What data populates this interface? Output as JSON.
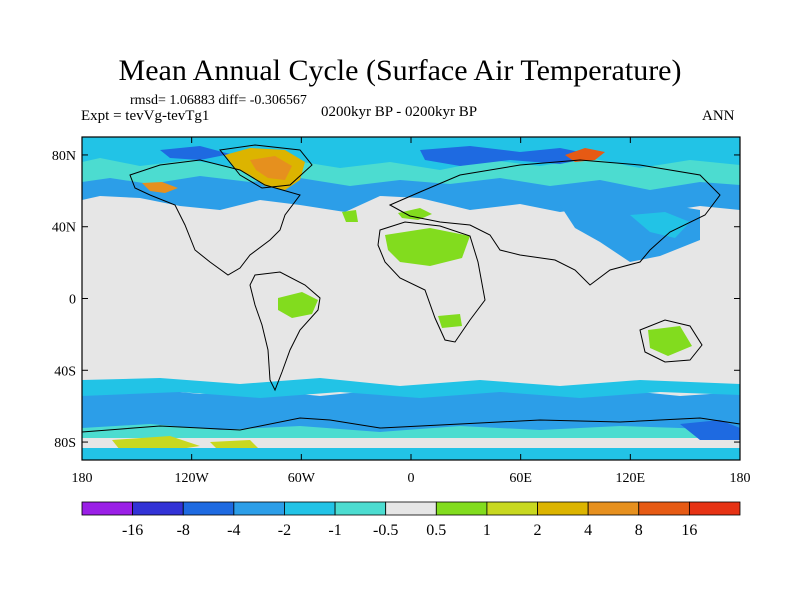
{
  "title": "Mean Annual Cycle (Surface Air Temperature)",
  "stats": "rmsd= 1.06883 diff= -0.306567",
  "experiment": "Expt = tevVg-tevTg1",
  "period": "0200kyr BP - 0200kyr BP",
  "season": "ANN",
  "chart_data": {
    "type": "heatmap",
    "title": "Mean Annual Cycle (Surface Air Temperature)",
    "projection": "cylindrical-equidistant",
    "lon_range": [
      -180,
      180
    ],
    "lat_range": [
      -90,
      90
    ],
    "x_ticks": [
      {
        "value": -180,
        "label": "180"
      },
      {
        "value": -120,
        "label": "120W"
      },
      {
        "value": -60,
        "label": "60W"
      },
      {
        "value": 0,
        "label": "0"
      },
      {
        "value": 60,
        "label": "60E"
      },
      {
        "value": 120,
        "label": "120E"
      },
      {
        "value": 180,
        "label": "180"
      }
    ],
    "y_ticks": [
      {
        "value": 80,
        "label": "80N"
      },
      {
        "value": 40,
        "label": "40N"
      },
      {
        "value": 0,
        "label": "0"
      },
      {
        "value": -40,
        "label": "40S"
      },
      {
        "value": -80,
        "label": "80S"
      }
    ],
    "colorbar": {
      "boundaries": [
        "-16",
        "-8",
        "-4",
        "-2",
        "-1",
        "-0.5",
        "0.5",
        "1",
        "2",
        "4",
        "8",
        "16"
      ],
      "colors": [
        "#9a1fe6",
        "#3232d6",
        "#1e6ae1",
        "#2c9ee8",
        "#22c3e6",
        "#4cdcd0",
        "#e6e6e6",
        "#82dc1e",
        "#c8d820",
        "#dcb400",
        "#e6901e",
        "#e65a14",
        "#e63214"
      ]
    }
  }
}
